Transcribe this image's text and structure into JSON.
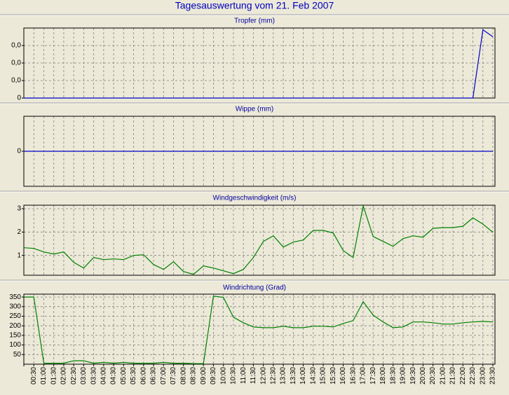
{
  "title": "Tagesauswertung vom 21. Feb 2007",
  "chart_data": [
    {
      "type": "line",
      "title": "Tropfer (mm)",
      "color": "#0000c8",
      "grid": true,
      "ylim": [
        0,
        0.04
      ],
      "yticks": [
        0,
        {
          "value": 0.01,
          "label": "0,0"
        },
        {
          "value": 0.02,
          "label": "0,0"
        },
        {
          "value": 0.03,
          "label": "0,0"
        }
      ],
      "values": [
        0,
        0,
        0,
        0,
        0,
        0,
        0,
        0,
        0,
        0,
        0,
        0,
        0,
        0,
        0,
        0,
        0,
        0,
        0,
        0,
        0,
        0,
        0,
        0,
        0,
        0,
        0,
        0,
        0,
        0,
        0,
        0,
        0,
        0,
        0,
        0,
        0,
        0,
        0,
        0,
        0,
        0,
        0,
        0,
        0,
        0,
        0.039,
        0.035
      ]
    },
    {
      "type": "line",
      "title": "Wippe (mm)",
      "color": "#0000c8",
      "grid": true,
      "ylim": [
        -1,
        1
      ],
      "yticks": [
        0
      ],
      "values": [
        0,
        0,
        0,
        0,
        0,
        0,
        0,
        0,
        0,
        0,
        0,
        0,
        0,
        0,
        0,
        0,
        0,
        0,
        0,
        0,
        0,
        0,
        0,
        0,
        0,
        0,
        0,
        0,
        0,
        0,
        0,
        0,
        0,
        0,
        0,
        0,
        0,
        0,
        0,
        0,
        0,
        0,
        0,
        0,
        0,
        0,
        0,
        0
      ]
    },
    {
      "type": "line",
      "title": "Windgeschwindigkeit (m/s)",
      "color": "#008000",
      "grid": true,
      "ylim": [
        0.15,
        3.15
      ],
      "yticks": [
        1,
        2,
        3
      ],
      "values": [
        1.33,
        1.3,
        1.15,
        1.06,
        1.15,
        0.7,
        0.46,
        0.91,
        0.82,
        0.85,
        0.82,
        1.0,
        1.03,
        0.61,
        0.4,
        0.73,
        0.31,
        0.19,
        0.55,
        0.46,
        0.34,
        0.22,
        0.4,
        0.91,
        1.6,
        1.84,
        1.36,
        1.57,
        1.66,
        2.07,
        2.07,
        1.96,
        1.21,
        0.91,
        3.12,
        1.81,
        1.6,
        1.39,
        1.72,
        1.84,
        1.78,
        2.16,
        2.19,
        2.19,
        2.25,
        2.61,
        2.34,
        1.99
      ]
    },
    {
      "type": "line",
      "title": "Windrichtung (Grad)",
      "color": "#008000",
      "grid": true,
      "ylim": [
        0,
        365
      ],
      "yticks": [
        50,
        100,
        150,
        200,
        250,
        300,
        350
      ],
      "categories": [
        null,
        "00:30",
        "01:00",
        "01:30",
        "02:00",
        "02:30",
        "03:00",
        "03:30",
        "04:00",
        "04:30",
        "05:00",
        "05:30",
        "06:00",
        "06:30",
        "07:00",
        "07:30",
        "08:00",
        "08:30",
        "09:00",
        "09:30",
        "10:00",
        "10:30",
        "11:00",
        "11:30",
        "12:00",
        "12:30",
        "13:00",
        "13:30",
        "14:00",
        "14:30",
        "15:00",
        "15:30",
        "16:00",
        "16:30",
        "17:00",
        "17:30",
        "18:00",
        "18:30",
        "19:00",
        "19:30",
        "20:00",
        "20:30",
        "21:00",
        "21:30",
        "22:00",
        "22:30",
        "23:00",
        "23:30"
      ],
      "values": [
        350,
        350,
        5,
        5,
        5,
        18,
        18,
        5,
        10,
        5,
        10,
        5,
        5,
        5,
        10,
        5,
        5,
        3,
        3,
        355,
        348,
        245,
        216,
        194,
        190,
        190,
        198,
        190,
        190,
        198,
        198,
        194,
        212,
        227,
        326,
        256,
        220,
        190,
        194,
        220,
        220,
        216,
        209,
        209,
        216,
        220,
        223,
        220
      ]
    }
  ]
}
